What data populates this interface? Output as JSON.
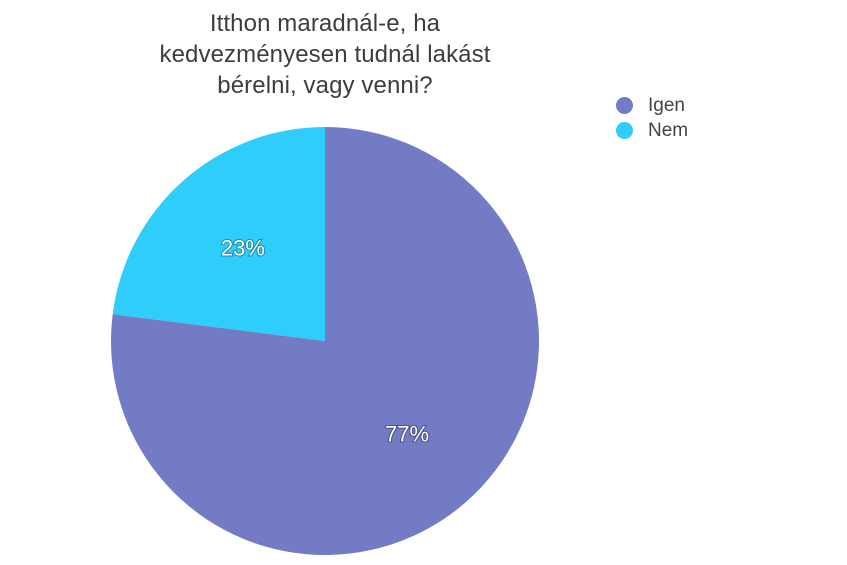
{
  "chart_data": {
    "type": "pie",
    "title": [
      "Itthon maradnál-e, ha",
      "kedvezményesen tudnál lakást",
      "bérelni, vagy venni?"
    ],
    "start_angle_deg": 0,
    "direction": "clockwise",
    "legend_position": "top-right",
    "slices": [
      {
        "name": "Igen",
        "value": 77,
        "label": "77%",
        "color": "#727bc4"
      },
      {
        "name": "Nem",
        "value": 23,
        "label": "23%",
        "color": "#2ecdfa"
      }
    ]
  }
}
